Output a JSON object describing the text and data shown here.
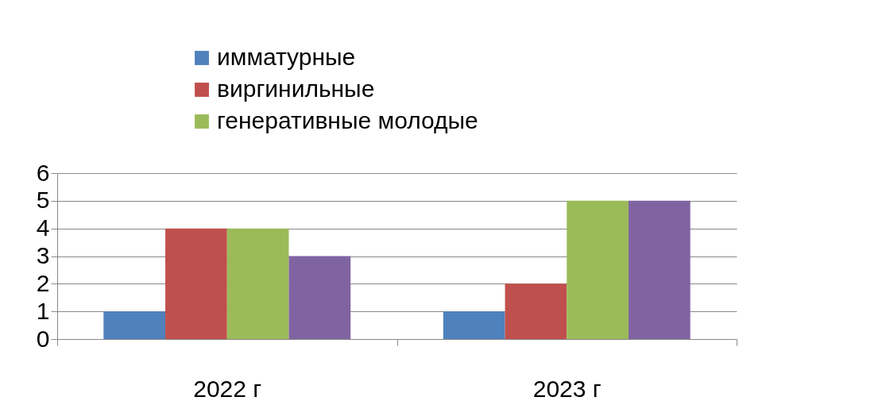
{
  "chart_data": {
    "type": "bar",
    "categories": [
      "2022 г",
      "2023 г"
    ],
    "series": [
      {
        "name": "имматурные",
        "color": "#4f81bd",
        "values": [
          1,
          1
        ]
      },
      {
        "name": "виргинильные",
        "color": "#c0504d",
        "values": [
          4,
          2
        ]
      },
      {
        "name": "генеративные молодые",
        "color": "#9bbb59",
        "values": [
          4,
          5
        ]
      },
      {
        "color": "#8064a2",
        "values": [
          3,
          5
        ]
      }
    ],
    "ylim": [
      0,
      6
    ],
    "yticks": [
      0,
      1,
      2,
      3,
      4,
      5,
      6
    ],
    "grid": "y",
    "legend": "top"
  }
}
